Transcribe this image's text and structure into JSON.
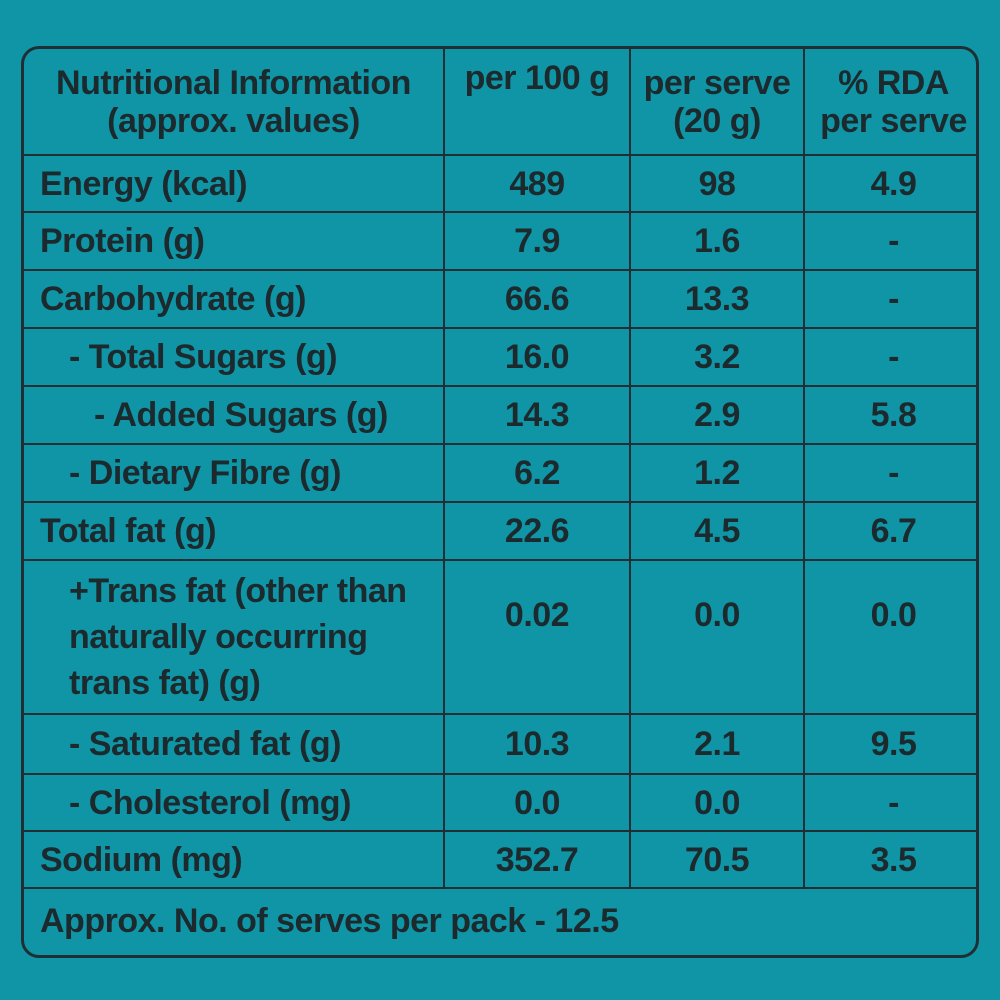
{
  "table": {
    "header": {
      "col1_line1": "Nutritional Information",
      "col1_line2": "(approx. values)",
      "col2": "per 100 g",
      "col3_line1": "per serve",
      "col3_line2": "(20 g)",
      "col4_line1": "% RDA",
      "col4_line2": "per serve"
    },
    "rows": [
      {
        "label": "Energy (kcal)",
        "per100g": "489",
        "perServe": "98",
        "rda": "4.9"
      },
      {
        "label": "Protein (g)",
        "per100g": "7.9",
        "perServe": "1.6",
        "rda": "-"
      },
      {
        "label": "Carbohydrate (g)",
        "per100g": "66.6",
        "perServe": "13.3",
        "rda": "-"
      },
      {
        "label": "- Total Sugars (g)",
        "per100g": "16.0",
        "perServe": "3.2",
        "rda": "-"
      },
      {
        "label": "- Added Sugars (g)",
        "per100g": "14.3",
        "perServe": "2.9",
        "rda": "5.8"
      },
      {
        "label": "- Dietary Fibre (g)",
        "per100g": "6.2",
        "perServe": "1.2",
        "rda": "-"
      },
      {
        "label": "Total fat (g)",
        "per100g": "22.6",
        "perServe": "4.5",
        "rda": "6.7"
      },
      {
        "label_line1": "+Trans fat (other than",
        "label_line2": "naturally occurring",
        "label_line3": "trans fat) (g)",
        "per100g": "0.02",
        "perServe": "0.0",
        "rda": "0.0"
      },
      {
        "label": "- Saturated fat (g)",
        "per100g": "10.3",
        "perServe": "2.1",
        "rda": "9.5"
      },
      {
        "label": "- Cholesterol (mg)",
        "per100g": "0.0",
        "perServe": "0.0",
        "rda": "-"
      },
      {
        "label": "Sodium (mg)",
        "per100g": "352.7",
        "perServe": "70.5",
        "rda": "3.5"
      }
    ],
    "footer": "Approx. No. of serves per pack - 12.5"
  },
  "colors": {
    "background": "#0f95a6",
    "text": "#1c2a2e",
    "border": "#1f2f33"
  }
}
